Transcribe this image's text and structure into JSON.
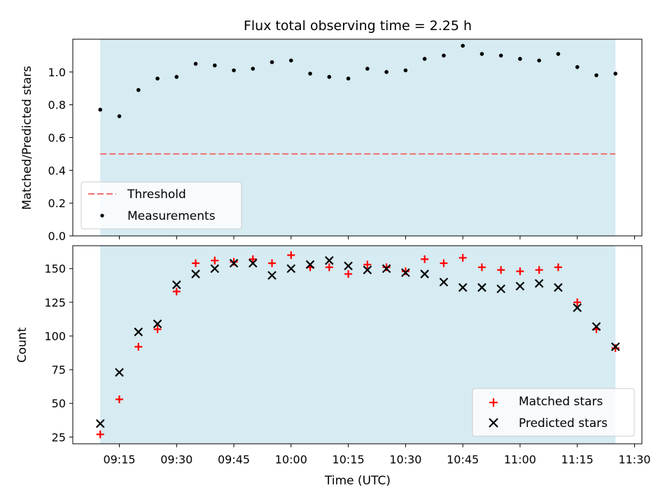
{
  "colors": {
    "band": "#add8e6",
    "threshold": "#f07070",
    "matched": "#ff0000",
    "predicted": "#000000",
    "measurement": "#000000"
  },
  "chart_data": [
    {
      "type": "scatter",
      "title": "Flux total observing time = 2.25 h",
      "xlabel": "",
      "ylabel": "Matched/Predicted stars",
      "ylim": [
        0,
        1.2
      ],
      "yticks": [
        0.0,
        0.2,
        0.4,
        0.6,
        0.8,
        1.0
      ],
      "ytick_labels": [
        "0.0",
        "0.2",
        "0.4",
        "0.6",
        "0.8",
        "1.0"
      ],
      "shaded_span": [
        "09:10",
        "11:25"
      ],
      "threshold": 0.5,
      "x": [
        "09:10",
        "09:15",
        "09:20",
        "09:25",
        "09:30",
        "09:35",
        "09:40",
        "09:45",
        "09:50",
        "09:55",
        "10:00",
        "10:05",
        "10:10",
        "10:15",
        "10:20",
        "10:25",
        "10:30",
        "10:35",
        "10:40",
        "10:45",
        "10:50",
        "10:55",
        "11:00",
        "11:05",
        "11:10",
        "11:15",
        "11:20",
        "11:25"
      ],
      "series": [
        {
          "name": "Threshold",
          "kind": "line",
          "style": "dashed"
        },
        {
          "name": "Measurements",
          "kind": "points",
          "values": [
            0.77,
            0.73,
            0.89,
            0.96,
            0.97,
            1.05,
            1.04,
            1.01,
            1.02,
            1.06,
            1.07,
            0.99,
            0.97,
            0.96,
            1.02,
            1.0,
            1.01,
            1.08,
            1.1,
            1.16,
            1.11,
            1.1,
            1.08,
            1.07,
            1.11,
            1.03,
            0.98,
            0.99
          ]
        }
      ],
      "legend": "lower-left",
      "grid": false
    },
    {
      "type": "scatter",
      "title": "",
      "xlabel": "Time (UTC)",
      "ylabel": "Count",
      "ylim": [
        20,
        167
      ],
      "yticks": [
        25,
        50,
        75,
        100,
        125,
        150
      ],
      "ytick_labels": [
        "25",
        "50",
        "75",
        "100",
        "125",
        "150"
      ],
      "xticks": [
        "09:15",
        "09:30",
        "09:45",
        "10:00",
        "10:15",
        "10:30",
        "10:45",
        "11:00",
        "11:15",
        "11:30"
      ],
      "shaded_span": [
        "09:10",
        "11:25"
      ],
      "x": [
        "09:10",
        "09:15",
        "09:20",
        "09:25",
        "09:30",
        "09:35",
        "09:40",
        "09:45",
        "09:50",
        "09:55",
        "10:00",
        "10:05",
        "10:10",
        "10:15",
        "10:20",
        "10:25",
        "10:30",
        "10:35",
        "10:40",
        "10:45",
        "10:50",
        "10:55",
        "11:00",
        "11:05",
        "11:10",
        "11:15",
        "11:20",
        "11:25"
      ],
      "series": [
        {
          "name": "Matched stars",
          "marker": "+",
          "values": [
            27,
            53,
            92,
            105,
            133,
            154,
            156,
            155,
            157,
            154,
            160,
            151,
            151,
            146,
            153,
            151,
            148,
            157,
            154,
            158,
            151,
            149,
            148,
            149,
            151,
            125,
            105,
            91
          ]
        },
        {
          "name": "Predicted stars",
          "marker": "x",
          "values": [
            35,
            73,
            103,
            109,
            138,
            146,
            150,
            154,
            154,
            145,
            150,
            153,
            156,
            152,
            149,
            150,
            147,
            146,
            140,
            136,
            136,
            135,
            137,
            139,
            136,
            121,
            107,
            92
          ]
        }
      ],
      "legend": "lower-right",
      "grid": false
    }
  ]
}
